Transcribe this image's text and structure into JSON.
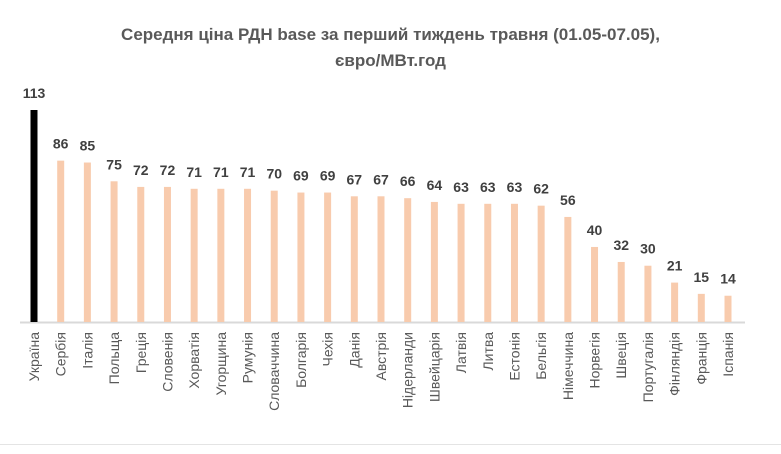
{
  "chart_data": {
    "type": "bar",
    "title_line1": "Середня ціна РДН base за перший тиждень травня (01.05-07.05),",
    "title_line2": "євро/МВт.год",
    "xlabel": "",
    "ylabel": "",
    "ylim": [
      0,
      113
    ],
    "grid": false,
    "legend": "none",
    "categories": [
      "Україна",
      "Сербія",
      "Італія",
      "Польща",
      "Греція",
      "Словенія",
      "Хорватія",
      "Угорщина",
      "Румунія",
      "Словаччина",
      "Болгарія",
      "Чехія",
      "Данія",
      "Австрія",
      "Нідерланди",
      "Швейцарія",
      "Латвія",
      "Литва",
      "Естонія",
      "Бельгія",
      "Німеччина",
      "Норвегія",
      "Швеція",
      "Португалія",
      "Фінляндія",
      "Франція",
      "Іспанія"
    ],
    "values": [
      113,
      86,
      85,
      75,
      72,
      72,
      71,
      71,
      71,
      70,
      69,
      69,
      67,
      67,
      66,
      64,
      63,
      63,
      63,
      62,
      56,
      40,
      32,
      30,
      21,
      15,
      14
    ],
    "colors": {
      "highlight": "#000000",
      "default": "#F8CBAD",
      "axis": "#D9D9D9",
      "label": "#404040"
    }
  }
}
